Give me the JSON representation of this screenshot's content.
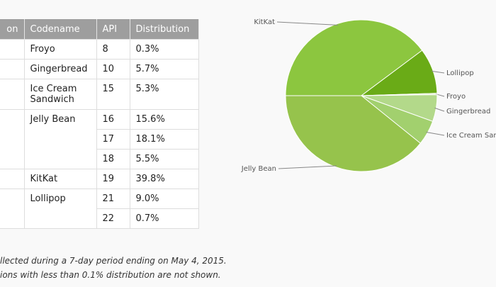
{
  "table": {
    "header": [
      "on",
      "Codename",
      "API",
      "Distribution"
    ],
    "groups": [
      {
        "codename": "Froyo",
        "rows": [
          {
            "api": "8",
            "distribution": "0.3%"
          }
        ]
      },
      {
        "codename": "Gingerbread",
        "rows": [
          {
            "api": "10",
            "distribution": "5.7%"
          }
        ]
      },
      {
        "codename": "Ice Cream Sandwich",
        "rows": [
          {
            "api": "15",
            "distribution": "5.3%"
          }
        ]
      },
      {
        "codename": "Jelly Bean",
        "rows": [
          {
            "api": "16",
            "distribution": "15.6%"
          },
          {
            "api": "17",
            "distribution": "18.1%"
          },
          {
            "api": "18",
            "distribution": "5.5%"
          }
        ]
      },
      {
        "codename": "KitKat",
        "rows": [
          {
            "api": "19",
            "distribution": "39.8%"
          }
        ]
      },
      {
        "codename": "Lollipop",
        "rows": [
          {
            "api": "21",
            "distribution": "9.0%"
          },
          {
            "api": "22",
            "distribution": "0.7%"
          }
        ]
      }
    ]
  },
  "notes": [
    "llected during a 7-day period ending on May 4, 2015.",
    "ions with less than 0.1% distribution are not shown."
  ],
  "chart_data": {
    "type": "pie",
    "categories": [
      "KitKat",
      "Lollipop",
      "Froyo",
      "Gingerbread",
      "Ice Cream Sand",
      "Jelly Bean"
    ],
    "values": [
      39.8,
      9.7,
      0.3,
      5.7,
      5.3,
      39.2
    ],
    "colors": [
      "#8cc63f",
      "#6aab17",
      "#d6ebbd",
      "#b3d98a",
      "#a2d06e",
      "#96c34c"
    ]
  }
}
